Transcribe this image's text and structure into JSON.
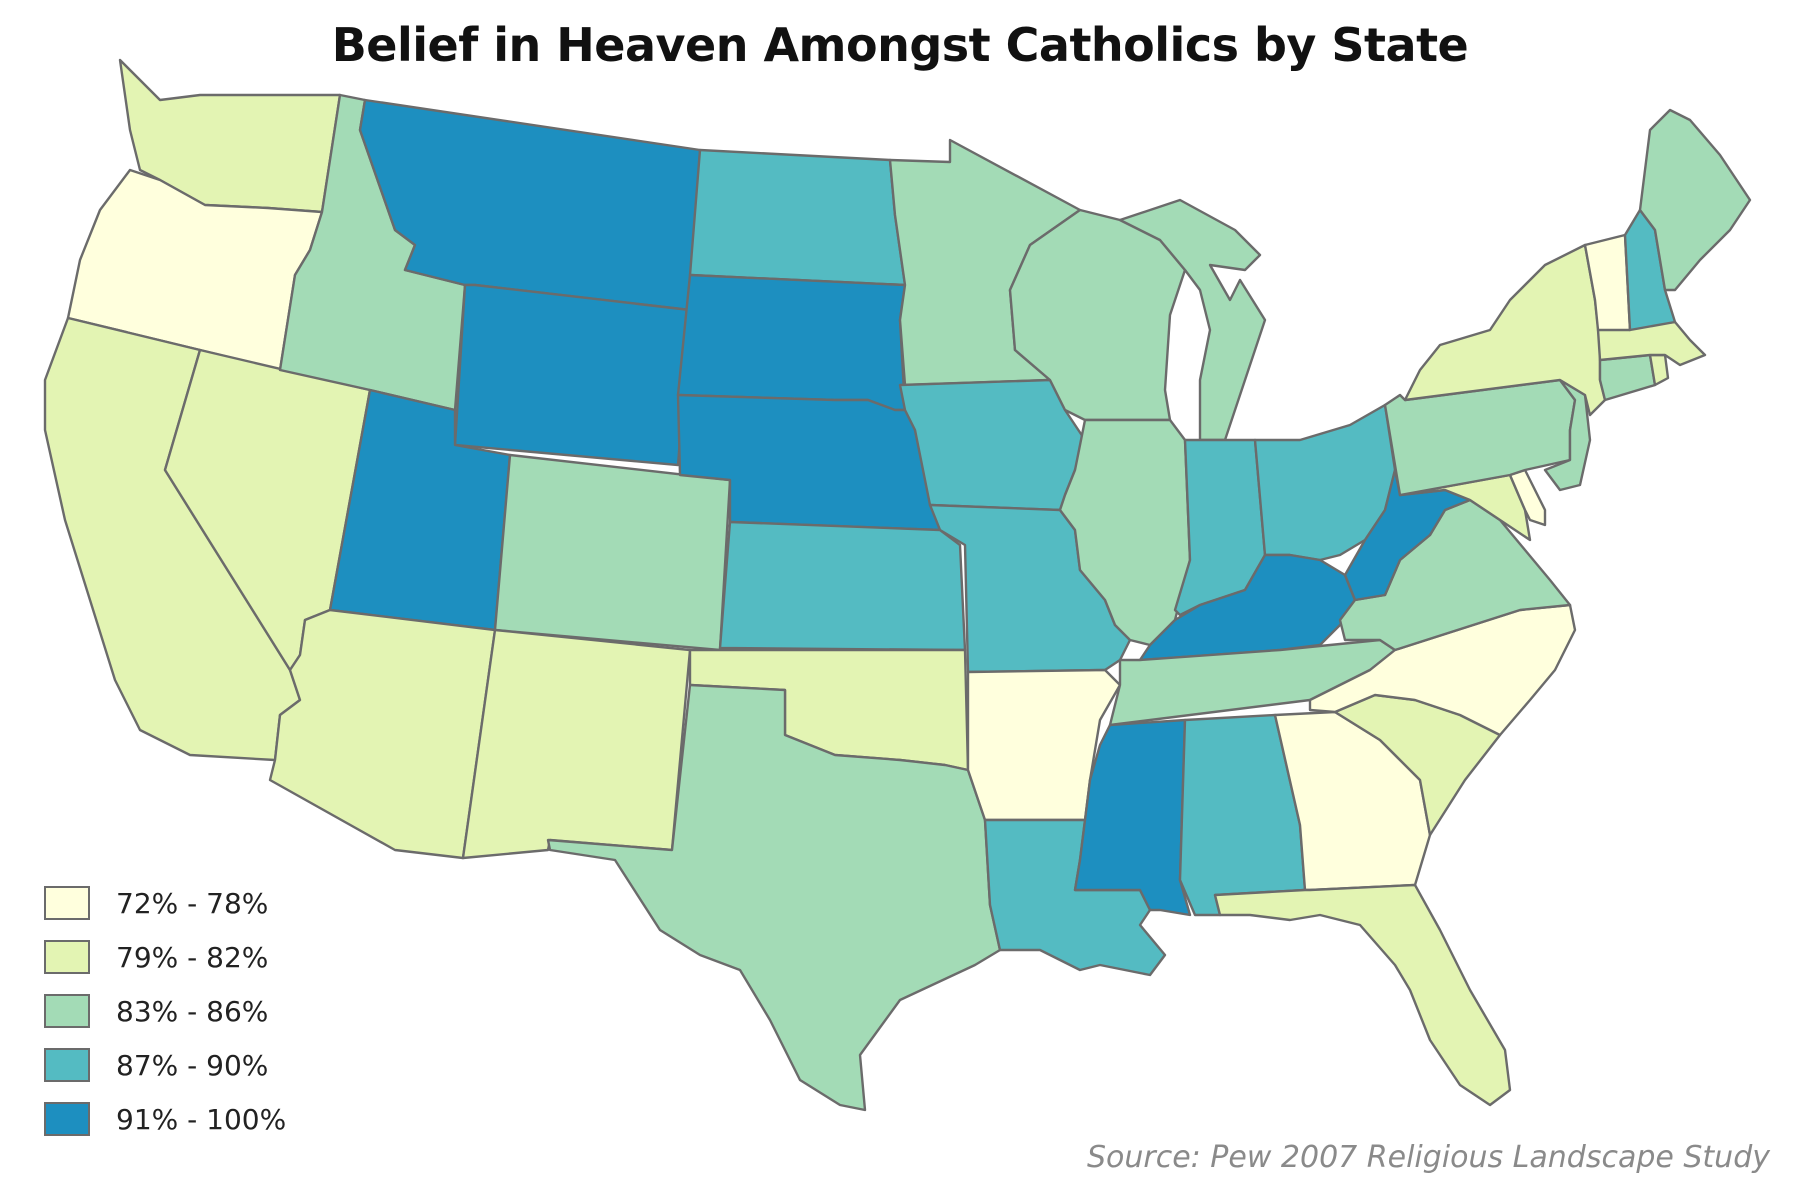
{
  "title": "Belief in Heaven Amongst Catholics by State",
  "source": "Source: Pew 2007 Religious Landscape Study",
  "colors": {
    "b1": "#ffffdd",
    "b2": "#e3f4b3",
    "b3": "#a3dbb6",
    "b4": "#54bbc2",
    "b5": "#1d8fc0",
    "border": "#6b6b6b"
  },
  "legend": [
    {
      "label": "72% - 78%",
      "bin": "b1"
    },
    {
      "label": "79% - 82%",
      "bin": "b2"
    },
    {
      "label": "83% - 86%",
      "bin": "b3"
    },
    {
      "label": "87% - 90%",
      "bin": "b4"
    },
    {
      "label": "91% - 100%",
      "bin": "b5"
    }
  ],
  "states": [
    {
      "code": "WA",
      "bin": "b2"
    },
    {
      "code": "OR",
      "bin": "b1"
    },
    {
      "code": "CA",
      "bin": "b2"
    },
    {
      "code": "NV",
      "bin": "b2"
    },
    {
      "code": "ID",
      "bin": "b3"
    },
    {
      "code": "MT",
      "bin": "b5"
    },
    {
      "code": "WY",
      "bin": "b5"
    },
    {
      "code": "UT",
      "bin": "b5"
    },
    {
      "code": "AZ",
      "bin": "b2"
    },
    {
      "code": "CO",
      "bin": "b3"
    },
    {
      "code": "NM",
      "bin": "b2"
    },
    {
      "code": "ND",
      "bin": "b4"
    },
    {
      "code": "SD",
      "bin": "b5"
    },
    {
      "code": "NE",
      "bin": "b5"
    },
    {
      "code": "KS",
      "bin": "b4"
    },
    {
      "code": "OK",
      "bin": "b2"
    },
    {
      "code": "TX",
      "bin": "b3"
    },
    {
      "code": "MN",
      "bin": "b3"
    },
    {
      "code": "IA",
      "bin": "b4"
    },
    {
      "code": "MO",
      "bin": "b4"
    },
    {
      "code": "AR",
      "bin": "b1"
    },
    {
      "code": "LA",
      "bin": "b4"
    },
    {
      "code": "WI",
      "bin": "b3"
    },
    {
      "code": "IL",
      "bin": "b3"
    },
    {
      "code": "MI",
      "bin": "b3"
    },
    {
      "code": "IN",
      "bin": "b4"
    },
    {
      "code": "OH",
      "bin": "b4"
    },
    {
      "code": "KY",
      "bin": "b5"
    },
    {
      "code": "TN",
      "bin": "b3"
    },
    {
      "code": "MS",
      "bin": "b5"
    },
    {
      "code": "AL",
      "bin": "b4"
    },
    {
      "code": "GA",
      "bin": "b1"
    },
    {
      "code": "FL",
      "bin": "b2"
    },
    {
      "code": "SC",
      "bin": "b2"
    },
    {
      "code": "NC",
      "bin": "b1"
    },
    {
      "code": "VA",
      "bin": "b3"
    },
    {
      "code": "WV",
      "bin": "b5"
    },
    {
      "code": "MD",
      "bin": "b2"
    },
    {
      "code": "DE",
      "bin": "b1"
    },
    {
      "code": "PA",
      "bin": "b3"
    },
    {
      "code": "NJ",
      "bin": "b3"
    },
    {
      "code": "NY",
      "bin": "b2"
    },
    {
      "code": "CT",
      "bin": "b3"
    },
    {
      "code": "RI",
      "bin": "b2"
    },
    {
      "code": "MA",
      "bin": "b2"
    },
    {
      "code": "VT",
      "bin": "b1"
    },
    {
      "code": "NH",
      "bin": "b4"
    },
    {
      "code": "ME",
      "bin": "b3"
    }
  ]
}
